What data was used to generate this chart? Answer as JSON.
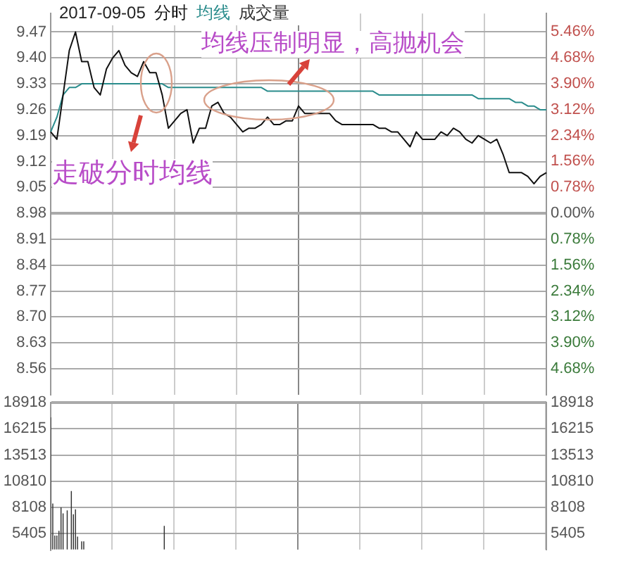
{
  "chart_data": [
    {
      "type": "line",
      "title": "2017-09-05",
      "categories": [
        null,
        null,
        null,
        null,
        null,
        null,
        null,
        null,
        null,
        null,
        null,
        null,
        null,
        null,
        null,
        null,
        null,
        null,
        null,
        null,
        null,
        null,
        null,
        null,
        null,
        null,
        null,
        null,
        null,
        null,
        null,
        null,
        null,
        null,
        null,
        null,
        null,
        null,
        null,
        null,
        null,
        null,
        null,
        null,
        null,
        null,
        null,
        null,
        null,
        null,
        null,
        null,
        null,
        null,
        null,
        null,
        null,
        null,
        null,
        null,
        null,
        null,
        null,
        null,
        null,
        null,
        null,
        null,
        null,
        null,
        null,
        null,
        null,
        null,
        null,
        null,
        null,
        null,
        null,
        null,
        null
      ],
      "series": [
        {
          "name": "分时",
          "color": "#111111",
          "values": [
            9.2,
            9.18,
            9.3,
            9.42,
            9.47,
            9.39,
            9.39,
            9.32,
            9.3,
            9.37,
            9.4,
            9.42,
            9.38,
            9.36,
            9.35,
            9.39,
            9.36,
            9.36,
            9.3,
            9.21,
            9.23,
            9.25,
            9.26,
            9.17,
            9.21,
            9.21,
            9.27,
            9.28,
            9.25,
            9.24,
            9.22,
            9.2,
            9.21,
            9.21,
            9.22,
            9.24,
            9.22,
            9.22,
            9.23,
            9.23,
            9.27,
            9.25,
            9.25,
            9.25,
            9.25,
            9.25,
            9.23,
            9.22,
            9.22,
            9.22,
            9.22,
            9.22,
            9.22,
            9.21,
            9.21,
            9.2,
            9.2,
            9.18,
            9.16,
            9.2,
            9.18,
            9.18,
            9.18,
            9.2,
            9.19,
            9.21,
            9.2,
            9.18,
            9.17,
            9.19,
            9.18,
            9.17,
            9.18,
            9.14,
            9.09,
            9.09,
            9.09,
            9.08,
            9.06,
            9.08,
            9.09
          ]
        },
        {
          "name": "均线",
          "color": "#2a8c8c",
          "values": [
            9.2,
            9.24,
            9.3,
            9.32,
            9.32,
            9.33,
            9.33,
            9.33,
            9.33,
            9.33,
            9.33,
            9.33,
            9.33,
            9.33,
            9.33,
            9.33,
            9.33,
            9.33,
            9.33,
            9.32,
            9.32,
            9.32,
            9.32,
            9.32,
            9.32,
            9.32,
            9.32,
            9.32,
            9.32,
            9.32,
            9.32,
            9.32,
            9.32,
            9.32,
            9.32,
            9.31,
            9.31,
            9.31,
            9.31,
            9.31,
            9.31,
            9.31,
            9.31,
            9.31,
            9.31,
            9.31,
            9.31,
            9.31,
            9.31,
            9.31,
            9.31,
            9.31,
            9.31,
            9.3,
            9.3,
            9.3,
            9.3,
            9.3,
            9.3,
            9.3,
            9.3,
            9.3,
            9.3,
            9.3,
            9.3,
            9.3,
            9.3,
            9.3,
            9.3,
            9.29,
            9.29,
            9.29,
            9.29,
            9.29,
            9.29,
            9.28,
            9.28,
            9.27,
            9.27,
            9.26,
            9.26
          ]
        }
      ],
      "ylim": [
        8.49,
        9.52
      ],
      "yticks": [
        {
          "value": 9.47,
          "label": "9.47"
        },
        {
          "value": 9.4,
          "label": "9.40"
        },
        {
          "value": 9.33,
          "label": "9.33"
        },
        {
          "value": 9.26,
          "label": "9.26"
        },
        {
          "value": 9.19,
          "label": "9.19"
        },
        {
          "value": 9.12,
          "label": "9.12"
        },
        {
          "value": 9.05,
          "label": "9.05"
        },
        {
          "value": 8.98,
          "label": "8.98"
        },
        {
          "value": 8.91,
          "label": "8.91"
        },
        {
          "value": 8.84,
          "label": "8.84"
        },
        {
          "value": 8.77,
          "label": "8.77"
        },
        {
          "value": 8.7,
          "label": "8.70"
        },
        {
          "value": 8.63,
          "label": "8.63"
        },
        {
          "value": 8.56,
          "label": "8.56"
        }
      ],
      "y2lim": [
        -5.46,
        6.01
      ],
      "y2ticks": [
        {
          "value": 5.46,
          "label": "5.46%"
        },
        {
          "value": 4.68,
          "label": "4.68%"
        },
        {
          "value": 3.9,
          "label": "3.90%"
        },
        {
          "value": 3.12,
          "label": "3.12%"
        },
        {
          "value": 2.34,
          "label": "2.34%"
        },
        {
          "value": 1.56,
          "label": "1.56%"
        },
        {
          "value": 0.78,
          "label": "0.78%"
        },
        {
          "value": 0,
          "label": "0.00%"
        },
        {
          "value": -0.78,
          "label": "0.78%"
        },
        {
          "value": -1.56,
          "label": "1.56%"
        },
        {
          "value": -2.34,
          "label": "2.34%"
        },
        {
          "value": -3.12,
          "label": "3.12%"
        },
        {
          "value": -3.9,
          "label": "3.90%"
        },
        {
          "value": -4.68,
          "label": "4.68%"
        }
      ],
      "annotations": [
        "均线压制明显，高抛机会",
        "走破分时均线"
      ],
      "grid": true,
      "legend": "top left",
      "marker": "none",
      "tick_labels": "y"
    },
    {
      "type": "bar",
      "categories": [
        null,
        null,
        null,
        null,
        null,
        null,
        null,
        null,
        null,
        null,
        null,
        null,
        null,
        null,
        null,
        null,
        null,
        null,
        null,
        null,
        null,
        null,
        null,
        null,
        null,
        null,
        null,
        null,
        null,
        null,
        null,
        null,
        null,
        null,
        null,
        null,
        null,
        null,
        null,
        null,
        null,
        null,
        null,
        null,
        null,
        null,
        null,
        null,
        null,
        null,
        null,
        null,
        null,
        null,
        null,
        null,
        null,
        null,
        null,
        null,
        null,
        null,
        null,
        null,
        null,
        null,
        null,
        null,
        null,
        null,
        null,
        null,
        null,
        null,
        null,
        null,
        null,
        null,
        null,
        null,
        null,
        null,
        null,
        null,
        null,
        null,
        null,
        null,
        null,
        null,
        null,
        null,
        null,
        null,
        null,
        null,
        null,
        null,
        null,
        null,
        null,
        null,
        null,
        null,
        null,
        null,
        null,
        null,
        null,
        null,
        null,
        null,
        null,
        null,
        null,
        null,
        null,
        null,
        null,
        null,
        null,
        null,
        null,
        null,
        null,
        null,
        null,
        null,
        null,
        null,
        null,
        null,
        null,
        null,
        null,
        null,
        null,
        null,
        null,
        null,
        null,
        null,
        null,
        null,
        null,
        null,
        null,
        null,
        null,
        null,
        null,
        null,
        null,
        null,
        null,
        null,
        null,
        null,
        null,
        null,
        null,
        null,
        null,
        null,
        null,
        null,
        null,
        null,
        null,
        null,
        null,
        null,
        null,
        null,
        null,
        null,
        null,
        null,
        null,
        null,
        null,
        null,
        null,
        null,
        null,
        null,
        null,
        null,
        null,
        null,
        null,
        null,
        null,
        null,
        null,
        null,
        null,
        null,
        null,
        null,
        null,
        null,
        null,
        null,
        null,
        null,
        null,
        null,
        null,
        null,
        null,
        null,
        null,
        null,
        null,
        null,
        null,
        null,
        null,
        null,
        null,
        null,
        null,
        null,
        null,
        null,
        null,
        null,
        null,
        null,
        null,
        null,
        null,
        null,
        null,
        null,
        null,
        null,
        null,
        null,
        null
      ],
      "series": [
        {
          "name": "成交量",
          "color": "#333333",
          "values": [
            17400,
            8500,
            5200,
            5200,
            5700,
            8100,
            7500,
            null,
            7800,
            null,
            9800,
            7400,
            7900,
            5100,
            null,
            4600,
            4600,
            null,
            null,
            null,
            null,
            null,
            null,
            null,
            null,
            null,
            null,
            null,
            null,
            null,
            null,
            null,
            null,
            null,
            null,
            null,
            null,
            null,
            null,
            null,
            null,
            null,
            null,
            null,
            null,
            null,
            null,
            null,
            null,
            null,
            null,
            null,
            null,
            null,
            null,
            6200,
            null,
            null,
            null,
            null,
            null,
            null,
            null,
            null,
            null,
            null,
            null,
            null,
            null,
            null,
            null,
            null,
            null,
            null,
            null,
            null,
            null,
            null,
            null,
            null,
            null,
            null,
            null,
            null,
            null,
            null,
            null,
            null,
            null,
            null,
            null,
            null,
            null,
            null,
            null,
            null,
            null,
            null,
            null,
            null,
            null,
            null,
            null,
            null,
            null,
            null,
            null,
            null,
            null,
            null,
            null,
            null,
            null,
            null,
            null,
            null,
            null,
            null,
            null,
            null,
            null,
            null,
            null,
            null,
            null,
            null,
            null,
            null,
            null,
            null,
            null,
            null,
            null,
            null,
            null,
            null,
            null,
            null,
            null,
            null,
            null,
            null,
            null,
            null,
            null,
            null,
            null,
            null,
            null,
            null,
            null,
            null,
            null,
            null,
            null,
            null,
            null,
            null,
            null,
            null,
            null,
            null,
            null,
            null,
            null,
            null,
            null,
            null,
            null,
            null,
            null,
            null,
            null,
            null,
            null,
            null,
            null,
            null,
            null,
            null,
            null,
            null,
            null,
            null,
            null,
            null,
            null,
            null,
            null,
            null,
            null,
            null,
            null,
            null,
            null,
            null,
            null,
            null,
            null,
            null,
            null,
            null,
            null,
            null,
            null,
            null,
            null,
            null,
            null,
            null,
            null,
            null,
            null,
            null,
            null,
            null,
            null,
            null,
            null,
            null,
            null,
            null,
            null,
            null,
            null,
            null,
            null,
            null,
            null,
            null,
            null,
            null,
            null,
            null,
            null,
            null,
            null,
            null,
            null,
            null,
            null
          ]
        }
      ],
      "ylim": [
        3770,
        18918
      ],
      "yticks": [
        18918,
        16215,
        13513,
        10810,
        8108,
        5405
      ],
      "y2lim": [
        3770,
        18918
      ],
      "y2ticks": [
        18918,
        16215,
        13513,
        10810,
        8108,
        5405
      ],
      "grid": true,
      "legend": "top left",
      "tick_labels": "y"
    }
  ]
}
